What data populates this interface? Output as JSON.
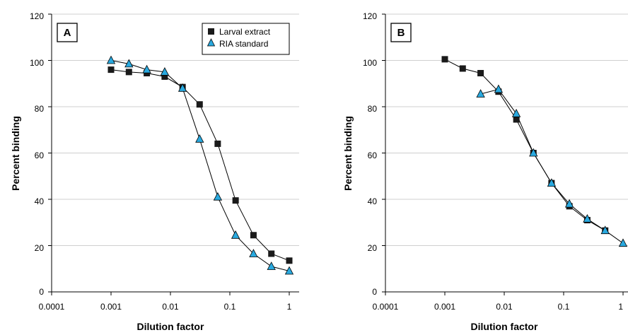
{
  "chart_data": [
    {
      "type": "scatter",
      "panel_label": "A",
      "xlabel": "Dilution factor",
      "ylabel": "Percent binding",
      "x_scale": "log",
      "xlim": [
        0.0001,
        1
      ],
      "ylim": [
        0,
        120
      ],
      "x_ticks": [
        "0.0001",
        "0.001",
        "0.01",
        "0.1",
        "1"
      ],
      "x_tick_values": [
        0.0001,
        0.001,
        0.01,
        0.1,
        1
      ],
      "y_ticks": [
        "0",
        "20",
        "40",
        "60",
        "80",
        "100",
        "120"
      ],
      "y_tick_values": [
        0,
        20,
        40,
        60,
        80,
        100,
        120
      ],
      "grid": "horizontal",
      "legend_position": "top-right",
      "series": [
        {
          "name": "Larval extract",
          "marker": "square",
          "color": "#1a1a1a",
          "x": [
            0.001,
            0.002,
            0.004,
            0.008,
            0.016,
            0.031,
            0.0625,
            0.125,
            0.25,
            0.5,
            1
          ],
          "y": [
            96,
            95,
            94.5,
            93,
            88.5,
            81,
            64,
            39.5,
            24.5,
            16.5,
            13.5
          ]
        },
        {
          "name": "RIA standard",
          "marker": "triangle",
          "color": "#29a9df",
          "x": [
            0.001,
            0.002,
            0.004,
            0.008,
            0.016,
            0.031,
            0.0625,
            0.125,
            0.25,
            0.5,
            1
          ],
          "y": [
            100,
            98.5,
            96,
            95,
            88,
            66,
            41,
            24.5,
            16.5,
            11,
            9
          ]
        }
      ]
    },
    {
      "type": "scatter",
      "panel_label": "B",
      "xlabel": "Dilution factor",
      "ylabel": "Percent binding",
      "x_scale": "log",
      "xlim": [
        0.0001,
        1
      ],
      "ylim": [
        0,
        120
      ],
      "x_ticks": [
        "0.0001",
        "0.001",
        "0.01",
        "0.1",
        "1"
      ],
      "x_tick_values": [
        0.0001,
        0.001,
        0.01,
        0.1,
        1
      ],
      "y_ticks": [
        "0",
        "20",
        "40",
        "60",
        "80",
        "100",
        "120"
      ],
      "y_tick_values": [
        0,
        20,
        40,
        60,
        80,
        100,
        120
      ],
      "grid": "horizontal",
      "series": [
        {
          "name": "Larval extract",
          "marker": "square",
          "color": "#1a1a1a",
          "x": [
            0.001,
            0.002,
            0.004,
            0.008,
            0.016,
            0.031,
            0.0625,
            0.125,
            0.25,
            0.5
          ],
          "y": [
            100.5,
            96.5,
            94.5,
            86.5,
            74.5,
            60,
            47,
            37,
            31,
            26.5
          ]
        },
        {
          "name": "RIA standard",
          "marker": "triangle",
          "color": "#29a9df",
          "x": [
            0.004,
            0.008,
            0.016,
            0.031,
            0.0625,
            0.125,
            0.25,
            0.5,
            1
          ],
          "y": [
            85.5,
            87.5,
            77,
            60,
            47,
            38,
            31.5,
            26.5,
            21
          ]
        }
      ]
    }
  ]
}
